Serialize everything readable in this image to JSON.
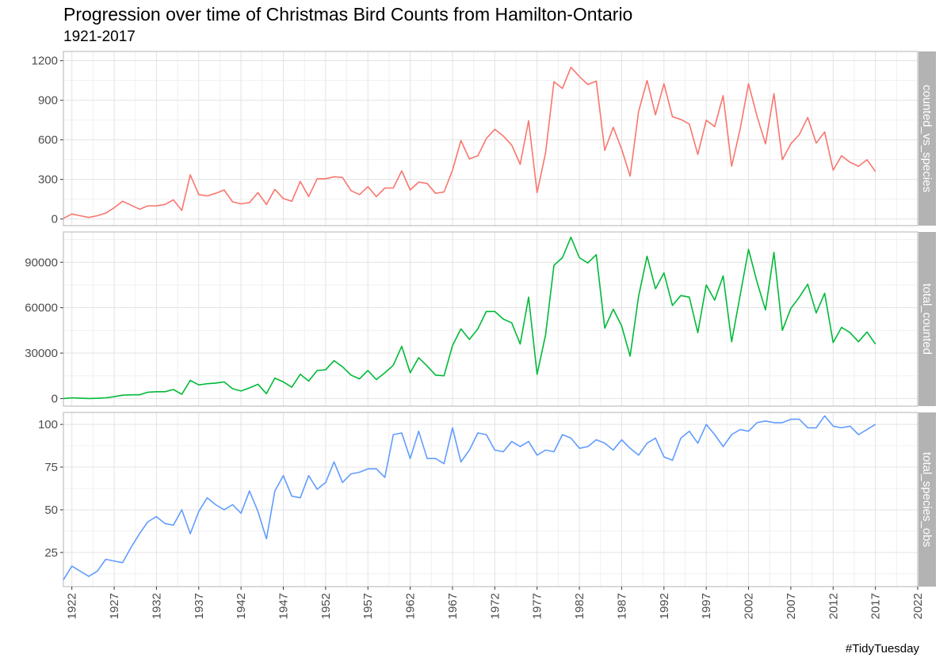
{
  "title": "Progression over time of Christmas Bird Counts from Hamilton-Ontario",
  "subtitle": "1921-2017",
  "caption": "#TidyTuesday",
  "chart_data": {
    "type": "line",
    "grid": true,
    "facets": "stacked vertically, strip labels on right",
    "x": {
      "label": "",
      "range": [
        1921,
        2022
      ],
      "ticks": [
        1922,
        1927,
        1932,
        1937,
        1942,
        1947,
        1952,
        1957,
        1962,
        1967,
        1972,
        1977,
        1982,
        1987,
        1992,
        1997,
        2002,
        2007,
        2012,
        2017,
        2022
      ],
      "years": [
        1921,
        1922,
        1923,
        1924,
        1925,
        1926,
        1927,
        1928,
        1929,
        1930,
        1931,
        1932,
        1933,
        1934,
        1935,
        1936,
        1937,
        1938,
        1939,
        1940,
        1941,
        1942,
        1943,
        1944,
        1945,
        1946,
        1947,
        1948,
        1949,
        1950,
        1951,
        1952,
        1953,
        1954,
        1955,
        1956,
        1957,
        1958,
        1959,
        1960,
        1961,
        1962,
        1963,
        1964,
        1965,
        1966,
        1967,
        1968,
        1969,
        1970,
        1971,
        1972,
        1973,
        1974,
        1975,
        1976,
        1977,
        1978,
        1979,
        1980,
        1981,
        1982,
        1983,
        1984,
        1985,
        1986,
        1987,
        1988,
        1989,
        1990,
        1991,
        1992,
        1993,
        1994,
        1995,
        1996,
        1997,
        1998,
        1999,
        2000,
        2001,
        2002,
        2003,
        2004,
        2005,
        2006,
        2007,
        2008,
        2009,
        2010,
        2011,
        2012,
        2013,
        2014,
        2015,
        2016,
        2017
      ]
    },
    "series": [
      {
        "name": "counted_vs_species",
        "color": "#F8766D",
        "ylim": [
          -50,
          1270
        ],
        "yticks": [
          0,
          300,
          600,
          900,
          1200
        ],
        "tick_labels": [
          "0",
          "300",
          "600",
          "900",
          "1200"
        ],
        "values": [
          5,
          38,
          25,
          12,
          25,
          45,
          85,
          135,
          105,
          75,
          100,
          100,
          110,
          145,
          65,
          335,
          185,
          175,
          195,
          220,
          130,
          115,
          125,
          200,
          110,
          225,
          155,
          135,
          285,
          170,
          305,
          305,
          320,
          315,
          215,
          185,
          245,
          170,
          235,
          235,
          365,
          220,
          280,
          270,
          195,
          205,
          370,
          595,
          455,
          480,
          610,
          680,
          630,
          560,
          415,
          745,
          200,
          500,
          1040,
          990,
          1150,
          1080,
          1020,
          1045,
          520,
          695,
          530,
          325,
          815,
          1050,
          790,
          1025,
          775,
          755,
          720,
          490,
          750,
          700,
          935,
          400,
          680,
          1025,
          780,
          570,
          950,
          450,
          570,
          640,
          770,
          575,
          660,
          370,
          480,
          430,
          400,
          450,
          360
        ]
      },
      {
        "name": "total_counted",
        "color": "#00BA38",
        "ylim": [
          -5000,
          110000
        ],
        "yticks": [
          0,
          30000,
          60000,
          90000
        ],
        "tick_labels": [
          "0",
          "30000",
          "60000",
          "90000"
        ],
        "values": [
          0,
          500,
          300,
          0,
          200,
          500,
          1200,
          2200,
          2500,
          2500,
          4200,
          4500,
          4500,
          6000,
          2800,
          12000,
          9000,
          9800,
          10200,
          11000,
          6500,
          5000,
          7000,
          9500,
          3200,
          13500,
          11000,
          7500,
          16000,
          11500,
          18500,
          19000,
          25000,
          21000,
          15500,
          13000,
          18500,
          12500,
          17000,
          22000,
          34500,
          17000,
          27000,
          21500,
          15500,
          15000,
          35000,
          46000,
          39000,
          46000,
          57500,
          57500,
          52500,
          50000,
          36000,
          67000,
          16000,
          42000,
          88000,
          93000,
          106500,
          93000,
          89500,
          95000,
          46500,
          59000,
          48000,
          28000,
          67500,
          94000,
          72500,
          83000,
          61500,
          68000,
          67000,
          43500,
          75000,
          65000,
          81000,
          37500,
          68000,
          98500,
          77000,
          58500,
          96500,
          45000,
          59500,
          67000,
          75500,
          56500,
          69500,
          37000,
          47000,
          43500,
          37500,
          44000,
          36000
        ]
      },
      {
        "name": "total_species_obs",
        "color": "#619CFF",
        "ylim": [
          5,
          107
        ],
        "yticks": [
          25,
          50,
          75,
          100
        ],
        "tick_labels": [
          "25",
          "50",
          "75",
          "100"
        ],
        "values": [
          9,
          17,
          14,
          11,
          14,
          21,
          20,
          19,
          28,
          36,
          43,
          46,
          42,
          41,
          50,
          36,
          49,
          57,
          53,
          50,
          53,
          48,
          61,
          49,
          33,
          61,
          70,
          58,
          57,
          70,
          62,
          66,
          78,
          66,
          71,
          72,
          74,
          74,
          69,
          94,
          95,
          80,
          96,
          80,
          80,
          77,
          98,
          78,
          85,
          95,
          94,
          85,
          84,
          90,
          87,
          90,
          82,
          85,
          84,
          94,
          92,
          86,
          87,
          91,
          89,
          85,
          91,
          86,
          82,
          89,
          92,
          81,
          79,
          92,
          96,
          89,
          100,
          94,
          87,
          94,
          97,
          96,
          101,
          102,
          101,
          101,
          103,
          103,
          98,
          98,
          105,
          99,
          98,
          99,
          94,
          97,
          100
        ]
      }
    ]
  }
}
